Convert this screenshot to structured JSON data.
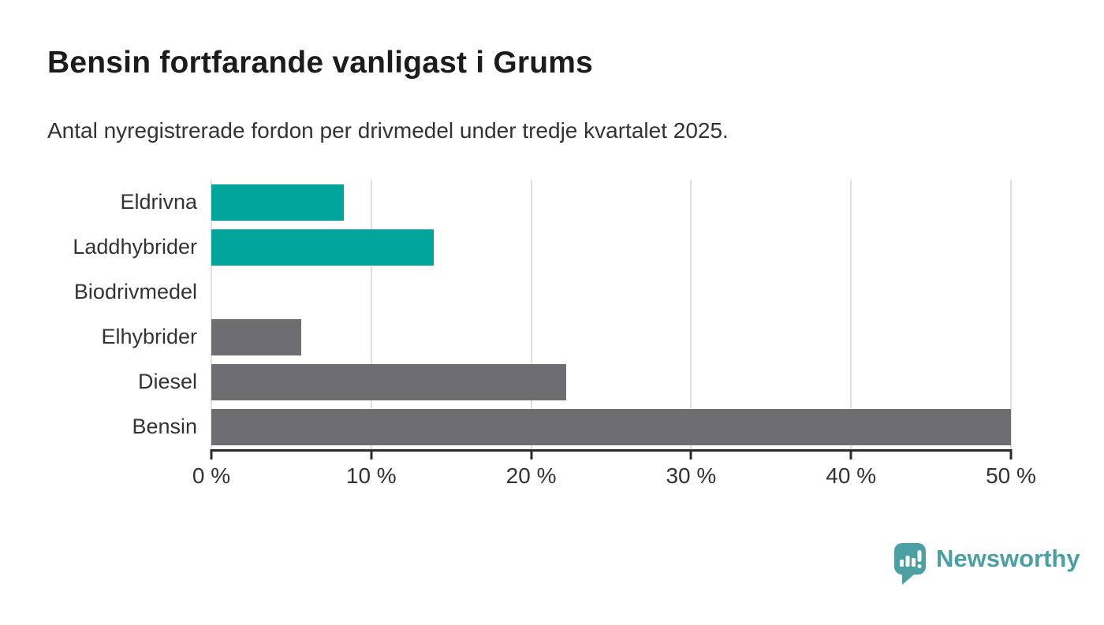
{
  "header": {
    "title": "Bensin fortfarande vanligast i Grums",
    "subtitle": "Antal nyregistrerade fordon per drivmedel under tredje kvartalet 2025."
  },
  "chart_data": {
    "type": "bar",
    "orientation": "horizontal",
    "title": "Bensin fortfarande vanligast i Grums",
    "subtitle": "Antal nyregistrerade fordon per drivmedel under tredje kvartalet 2025.",
    "categories": [
      "Eldrivna",
      "Laddhybrider",
      "Biodrivmedel",
      "Elhybrider",
      "Diesel",
      "Bensin"
    ],
    "values": [
      8.3,
      13.9,
      0,
      5.6,
      22.2,
      50
    ],
    "unit": "%",
    "bar_colors": [
      "#00a49b",
      "#00a49b",
      "#00a49b",
      "#6e6d72",
      "#6e6d72",
      "#6e6d72"
    ],
    "xlabel": "",
    "ylabel": "",
    "xlim": [
      0,
      50
    ],
    "x_ticks": [
      {
        "value": 0,
        "label": "0 %"
      },
      {
        "value": 10,
        "label": "10 %"
      },
      {
        "value": 20,
        "label": "20 %"
      },
      {
        "value": 30,
        "label": "30 %"
      },
      {
        "value": 40,
        "label": "40 %"
      },
      {
        "value": 50,
        "label": "50 %"
      }
    ],
    "grid": true,
    "legend": false,
    "colors": {
      "electric_accent": "#00a49b",
      "fossil_gray": "#6e6d72",
      "gridline": "#e0e0e0",
      "axis": "#2b2b2b",
      "title_text": "#1c1c1c",
      "body_text": "#333333"
    }
  },
  "footer": {
    "logo_text": "Newsworthy",
    "logo_color": "#4aa0a2"
  }
}
